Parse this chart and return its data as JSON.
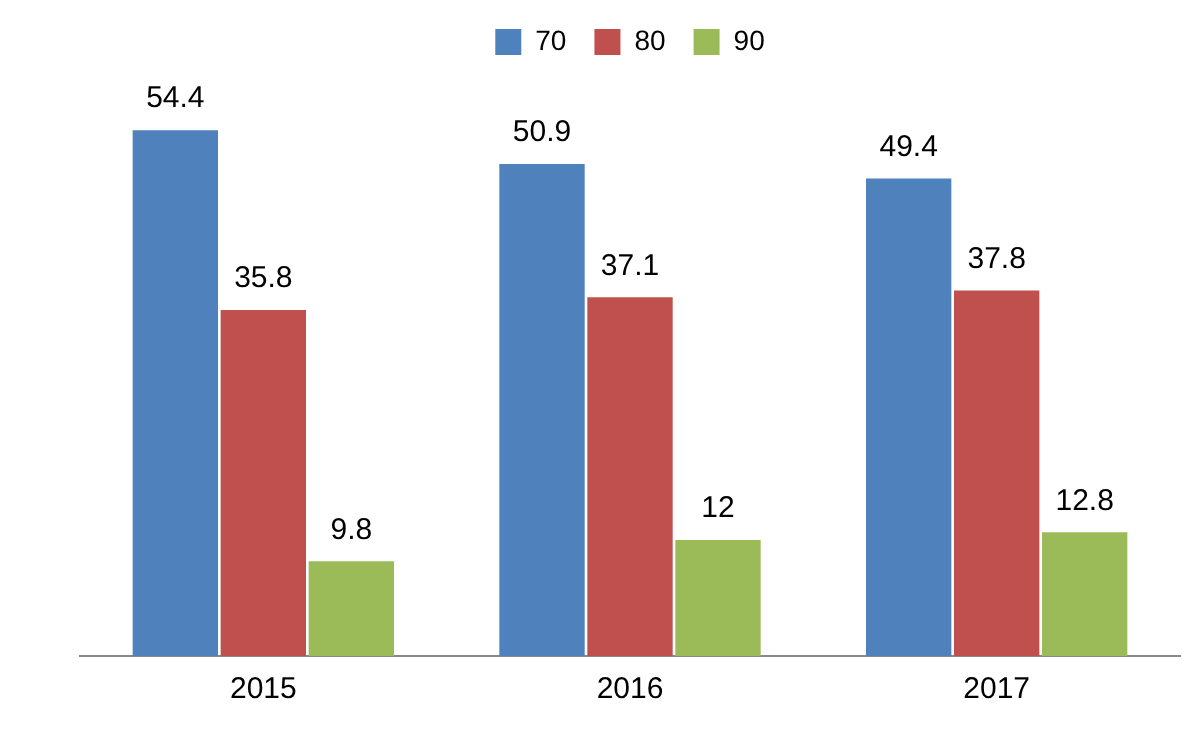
{
  "chart_data": {
    "type": "bar",
    "categories": [
      "2015",
      "2016",
      "2017"
    ],
    "series": [
      {
        "name": "70",
        "color": "#4f81bd",
        "values": [
          54.4,
          50.9,
          49.4
        ]
      },
      {
        "name": "80",
        "color": "#c0504d",
        "values": [
          35.8,
          37.1,
          37.8
        ]
      },
      {
        "name": "90",
        "color": "#9bbb59",
        "values": [
          9.8,
          12,
          12.8
        ]
      }
    ],
    "data_labels": true,
    "legend": "top",
    "grid": false,
    "tick_labels": "x"
  }
}
